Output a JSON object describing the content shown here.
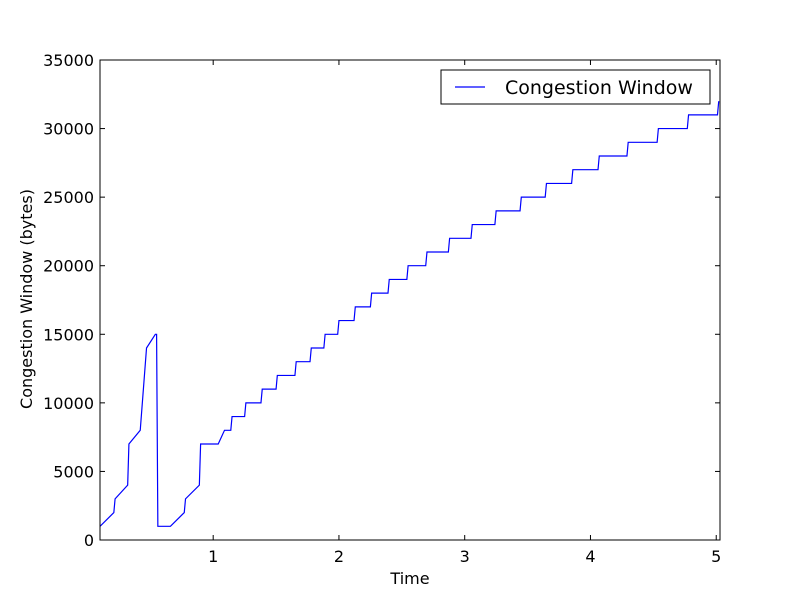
{
  "chart_data": {
    "type": "line",
    "title": "",
    "xlabel": "Time",
    "ylabel": "Congestion Window (bytes)",
    "xlim": [
      0.1,
      5.03
    ],
    "ylim": [
      0,
      35000
    ],
    "x_ticks": [
      1,
      2,
      3,
      4,
      5
    ],
    "x_tick_labels": [
      "1",
      "2",
      "3",
      "4",
      "5"
    ],
    "y_ticks": [
      0,
      5000,
      10000,
      15000,
      20000,
      25000,
      30000,
      35000
    ],
    "y_tick_labels": [
      "0",
      "5000",
      "10000",
      "15000",
      "20000",
      "25000",
      "30000",
      "35000"
    ],
    "grid": false,
    "legend": {
      "position": "top-right"
    },
    "series": [
      {
        "name": "Congestion Window",
        "color": "#0000ff",
        "x": [
          0.1,
          0.21,
          0.22,
          0.32,
          0.33,
          0.42,
          0.47,
          0.54,
          0.55,
          0.56,
          0.66,
          0.77,
          0.78,
          0.89,
          0.9,
          1.04,
          1.09,
          1.14,
          1.15,
          1.25,
          1.26,
          1.38,
          1.39,
          1.5,
          1.51,
          1.65,
          1.66,
          1.77,
          1.78,
          1.88,
          1.89,
          1.99,
          2.0,
          2.12,
          2.13,
          2.25,
          2.26,
          2.39,
          2.4,
          2.54,
          2.55,
          2.69,
          2.7,
          2.87,
          2.88,
          3.05,
          3.06,
          3.24,
          3.25,
          3.44,
          3.45,
          3.64,
          3.65,
          3.85,
          3.86,
          4.06,
          4.07,
          4.29,
          4.3,
          4.53,
          4.54,
          4.77,
          4.78,
          5.01,
          5.02
        ],
        "y": [
          1000,
          2000,
          3000,
          4000,
          7000,
          8000,
          14000,
          15000,
          15000,
          1000,
          1000,
          2000,
          3000,
          4000,
          7000,
          7000,
          8000,
          8000,
          9000,
          9000,
          10000,
          10000,
          11000,
          11000,
          12000,
          12000,
          13000,
          13000,
          14000,
          14000,
          15000,
          15000,
          16000,
          16000,
          17000,
          17000,
          18000,
          18000,
          19000,
          19000,
          20000,
          20000,
          21000,
          21000,
          22000,
          22000,
          23000,
          23000,
          24000,
          24000,
          25000,
          25000,
          26000,
          26000,
          27000,
          27000,
          28000,
          28000,
          29000,
          29000,
          30000,
          30000,
          31000,
          31000,
          32000
        ]
      }
    ]
  }
}
